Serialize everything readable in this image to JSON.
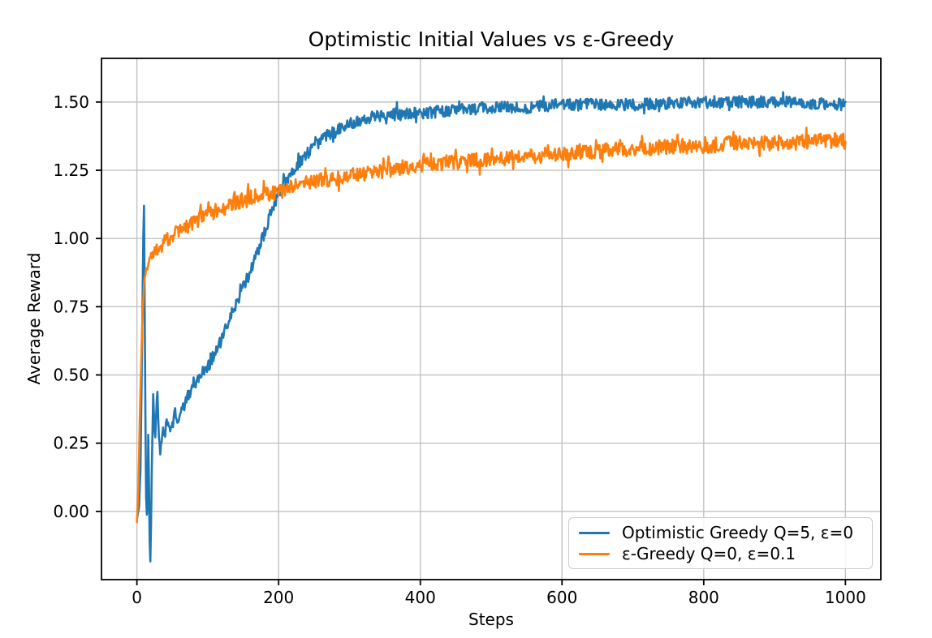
{
  "chart_data": {
    "type": "line",
    "title": "Optimistic Initial Values vs ε-Greedy",
    "xlabel": "Steps",
    "ylabel": "Average Reward",
    "xlim": [
      -50,
      1050
    ],
    "ylim": [
      -0.25,
      1.66
    ],
    "x_max": 1000,
    "x_ticks": [
      0,
      200,
      400,
      600,
      800,
      1000
    ],
    "x_tick_labels": [
      "0",
      "200",
      "400",
      "600",
      "800",
      "1000"
    ],
    "y_ticks": [
      0.0,
      0.25,
      0.5,
      0.75,
      1.0,
      1.25,
      1.5
    ],
    "y_tick_labels": [
      "0.00",
      "0.25",
      "0.50",
      "0.75",
      "1.00",
      "1.25",
      "1.50"
    ],
    "grid": true,
    "grid_color": "#c2c2c2",
    "spine_color": "#000000",
    "legend_position": "lower right",
    "series": [
      {
        "name": "Optimistic Greedy Q=5, ε=0",
        "color": "#1f77b4",
        "noise_amplitude": 0.022,
        "keypoints": [
          [
            0,
            -0.03
          ],
          [
            3,
            0.02
          ],
          [
            5,
            0.15
          ],
          [
            7,
            0.55
          ],
          [
            9,
            1.0
          ],
          [
            10,
            1.12
          ],
          [
            11,
            0.75
          ],
          [
            12,
            0.35
          ],
          [
            13,
            0.05
          ],
          [
            14,
            -0.02
          ],
          [
            15,
            0.02
          ],
          [
            16,
            0.28
          ],
          [
            17,
            0.1
          ],
          [
            18,
            -0.1
          ],
          [
            19,
            -0.17
          ],
          [
            20,
            -0.05
          ],
          [
            21,
            0.15
          ],
          [
            22,
            0.3
          ],
          [
            23,
            0.42
          ],
          [
            24,
            0.35
          ],
          [
            25,
            0.29
          ],
          [
            26,
            0.27
          ],
          [
            27,
            0.33
          ],
          [
            28,
            0.41
          ],
          [
            29,
            0.44
          ],
          [
            30,
            0.36
          ],
          [
            31,
            0.29
          ],
          [
            32,
            0.24
          ],
          [
            33,
            0.21
          ],
          [
            35,
            0.27
          ],
          [
            38,
            0.3
          ],
          [
            40,
            0.29
          ],
          [
            43,
            0.33
          ],
          [
            46,
            0.3
          ],
          [
            50,
            0.32
          ],
          [
            54,
            0.36
          ],
          [
            58,
            0.33
          ],
          [
            62,
            0.36
          ],
          [
            66,
            0.38
          ],
          [
            70,
            0.41
          ],
          [
            75,
            0.44
          ],
          [
            80,
            0.47
          ],
          [
            85,
            0.48
          ],
          [
            90,
            0.5
          ],
          [
            95,
            0.52
          ],
          [
            100,
            0.53
          ],
          [
            110,
            0.58
          ],
          [
            120,
            0.63
          ],
          [
            130,
            0.7
          ],
          [
            140,
            0.76
          ],
          [
            150,
            0.82
          ],
          [
            160,
            0.88
          ],
          [
            170,
            0.95
          ],
          [
            180,
            1.02
          ],
          [
            190,
            1.1
          ],
          [
            200,
            1.17
          ],
          [
            210,
            1.21
          ],
          [
            220,
            1.25
          ],
          [
            230,
            1.28
          ],
          [
            240,
            1.31
          ],
          [
            250,
            1.34
          ],
          [
            260,
            1.36
          ],
          [
            270,
            1.38
          ],
          [
            280,
            1.4
          ],
          [
            300,
            1.42
          ],
          [
            320,
            1.44
          ],
          [
            340,
            1.45
          ],
          [
            360,
            1.46
          ],
          [
            400,
            1.46
          ],
          [
            450,
            1.47
          ],
          [
            500,
            1.48
          ],
          [
            550,
            1.48
          ],
          [
            600,
            1.49
          ],
          [
            700,
            1.49
          ],
          [
            800,
            1.5
          ],
          [
            900,
            1.5
          ],
          [
            1000,
            1.49
          ]
        ]
      },
      {
        "name": "ε-Greedy Q=0, ε=0.1",
        "color": "#ff7f0e",
        "noise_amplitude": 0.028,
        "keypoints": [
          [
            0,
            -0.04
          ],
          [
            2,
            0.08
          ],
          [
            4,
            0.33
          ],
          [
            6,
            0.55
          ],
          [
            8,
            0.72
          ],
          [
            10,
            0.83
          ],
          [
            12,
            0.87
          ],
          [
            15,
            0.9
          ],
          [
            18,
            0.92
          ],
          [
            20,
            0.93
          ],
          [
            25,
            0.95
          ],
          [
            30,
            0.96
          ],
          [
            35,
            0.975
          ],
          [
            40,
            0.99
          ],
          [
            50,
            1.01
          ],
          [
            60,
            1.03
          ],
          [
            70,
            1.04
          ],
          [
            80,
            1.06
          ],
          [
            90,
            1.075
          ],
          [
            100,
            1.09
          ],
          [
            120,
            1.11
          ],
          [
            140,
            1.13
          ],
          [
            160,
            1.15
          ],
          [
            180,
            1.16
          ],
          [
            200,
            1.17
          ],
          [
            220,
            1.19
          ],
          [
            250,
            1.21
          ],
          [
            280,
            1.22
          ],
          [
            300,
            1.23
          ],
          [
            350,
            1.25
          ],
          [
            400,
            1.27
          ],
          [
            450,
            1.28
          ],
          [
            500,
            1.29
          ],
          [
            550,
            1.3
          ],
          [
            600,
            1.31
          ],
          [
            650,
            1.32
          ],
          [
            700,
            1.33
          ],
          [
            750,
            1.335
          ],
          [
            800,
            1.34
          ],
          [
            850,
            1.35
          ],
          [
            900,
            1.35
          ],
          [
            950,
            1.355
          ],
          [
            1000,
            1.36
          ]
        ]
      }
    ]
  }
}
